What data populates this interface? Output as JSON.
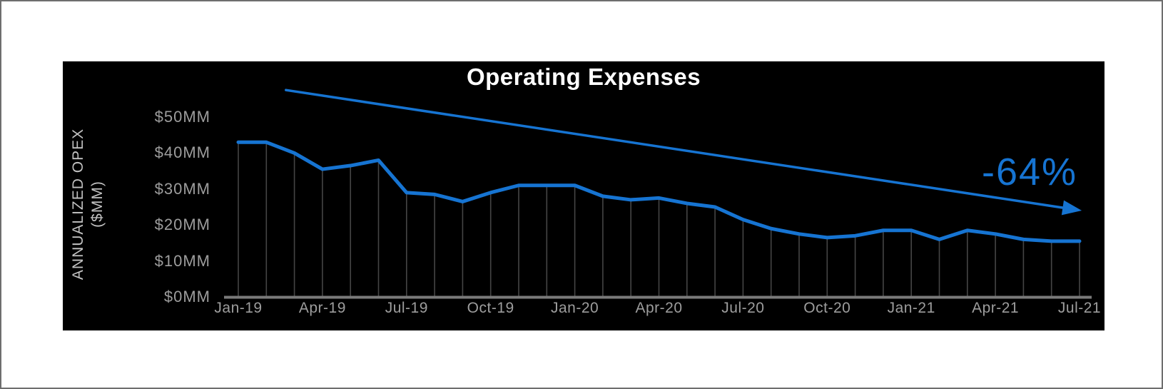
{
  "page": {
    "background_color": "#ffffff",
    "border_color": "#6e6e6e"
  },
  "chart": {
    "panel_background": "#000000",
    "title": "Operating Expenses",
    "title_color": "#ffffff",
    "y_axis_title_line1": "ANNUALIZED OPEX",
    "y_axis_title_line2": "($MM)",
    "axis_text_color": "#9d9d9d",
    "axis_title_color": "#c2c2c2",
    "axis_line_color": "#7a7a7a",
    "drop_line_color": "#454545",
    "series_color": "#1674d2"
  },
  "chart_data": {
    "type": "line",
    "title": "Operating Expenses",
    "xlabel": "",
    "ylabel": "ANNUALIZED OPEX ($MM)",
    "x": [
      "Jan-19",
      "Feb-19",
      "Mar-19",
      "Apr-19",
      "May-19",
      "Jun-19",
      "Jul-19",
      "Aug-19",
      "Sep-19",
      "Oct-19",
      "Nov-19",
      "Dec-19",
      "Jan-20",
      "Feb-20",
      "Mar-20",
      "Apr-20",
      "May-20",
      "Jun-20",
      "Jul-20",
      "Aug-20",
      "Sep-20",
      "Oct-20",
      "Nov-20",
      "Dec-20",
      "Jan-21",
      "Feb-21",
      "Mar-21",
      "Apr-21",
      "May-21",
      "Jun-21",
      "Jul-21"
    ],
    "values": [
      43,
      43,
      40,
      35.5,
      36.5,
      38,
      29,
      28.5,
      26.5,
      29,
      31,
      31,
      31,
      28,
      27,
      27.5,
      26,
      25,
      21.5,
      19,
      17.5,
      16.5,
      17,
      18.5,
      18.5,
      16,
      18.5,
      17.5,
      16,
      15.5,
      15.5
    ],
    "x_tick_labels": [
      "Jan-19",
      "Apr-19",
      "Jul-19",
      "Oct-19",
      "Jan-20",
      "Apr-20",
      "Jul-20",
      "Oct-20",
      "Jan-21",
      "Apr-21",
      "Jul-21"
    ],
    "x_tick_every": 3,
    "y_ticks": [
      {
        "label": "$0MM",
        "value": 0
      },
      {
        "label": "$10MM",
        "value": 10
      },
      {
        "label": "$20MM",
        "value": 20
      },
      {
        "label": "$30MM",
        "value": 30
      },
      {
        "label": "$40MM",
        "value": 40
      },
      {
        "label": "$50MM",
        "value": 50
      }
    ],
    "ylim": [
      0,
      57
    ],
    "grid": "vertical-drop-lines-per-month",
    "legend": "none",
    "trendline": {
      "label": "-64%",
      "color": "#1674d2",
      "start": {
        "month_index": 1.7,
        "value": 57.5
      },
      "end": {
        "month_index": 29.4,
        "value": 24.8
      }
    }
  }
}
